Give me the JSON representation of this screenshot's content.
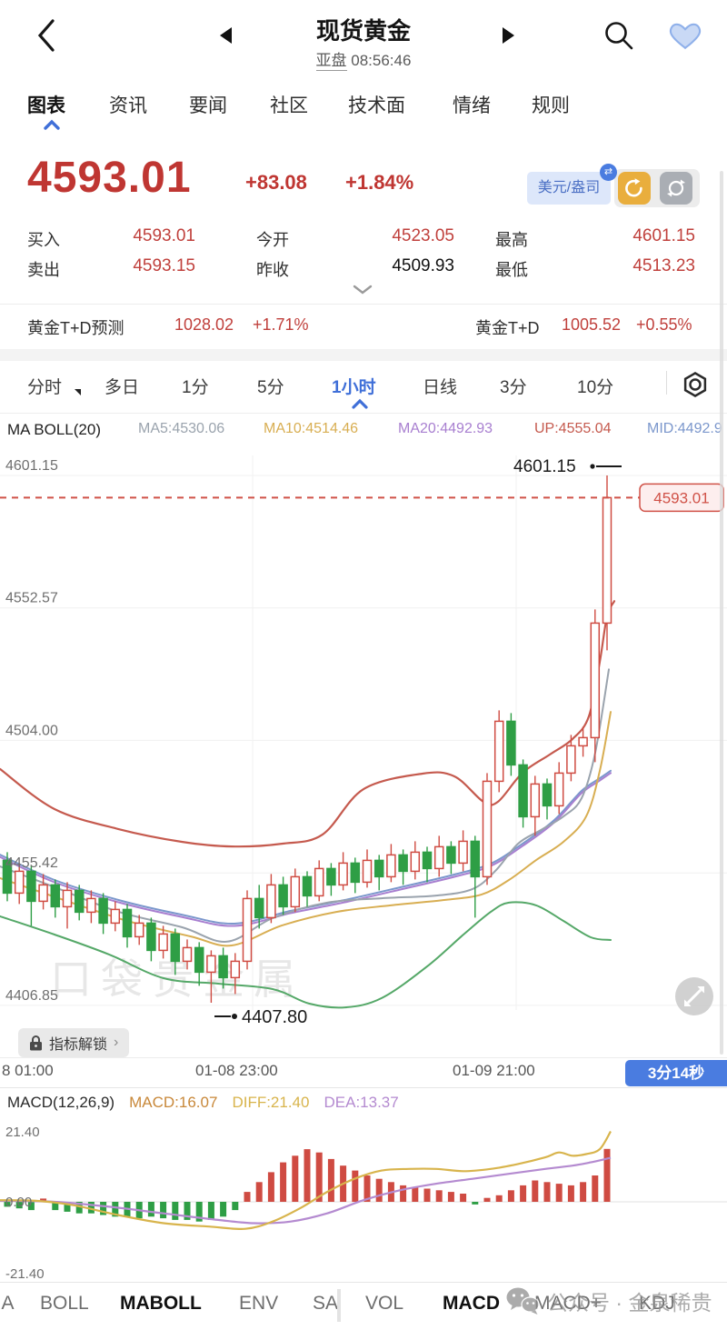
{
  "colors": {
    "up_red": "#cf4b42",
    "down_green": "#2e9e45",
    "price_red": "#bf3632",
    "accent_blue": "#3f6fd8",
    "badge_blue": "#4a7ce0",
    "ma5": "#9aa3ad",
    "ma10": "#d8ae52",
    "ma20": "#a87fd0",
    "boll_up": "#c55a4e",
    "boll_mid": "#7b97cc",
    "boll_low": "#55a868",
    "macd_val": "#c8883a",
    "diff_yellow": "#d8b44c",
    "dea_purple": "#b48ad0"
  },
  "header": {
    "title": "现货黄金",
    "session": "亚盘",
    "time": "08:56:46"
  },
  "nav_tabs": {
    "items": [
      {
        "label": "图表",
        "active": true
      },
      {
        "label": "资讯"
      },
      {
        "label": "要闻"
      },
      {
        "label": "社区"
      },
      {
        "label": "技术面"
      },
      {
        "label": "情绪"
      },
      {
        "label": "规则"
      }
    ]
  },
  "price_panel": {
    "last": "4593.01",
    "change": "+83.08",
    "change_pct": "+1.84%",
    "unit_chip": "美元/盎司"
  },
  "quotes": [
    {
      "label": "买入",
      "value": "4593.01",
      "red": true
    },
    {
      "label": "今开",
      "value": "4523.05",
      "red": true
    },
    {
      "label": "最高",
      "value": "4601.15",
      "red": true
    },
    {
      "label": "卖出",
      "value": "4593.15",
      "red": true
    },
    {
      "label": "昨收",
      "value": "4509.93",
      "red": false
    },
    {
      "label": "最低",
      "value": "4513.23",
      "red": true
    }
  ],
  "td_bar": {
    "left_label": "黄金T+D预测",
    "left_value": "1028.02",
    "left_pct": "+1.71%",
    "right_label": "黄金T+D",
    "right_value": "1005.52",
    "right_pct": "+0.55%"
  },
  "timeframe_bar": {
    "items": [
      {
        "label": "分时",
        "dropdown": true
      },
      {
        "label": "多日"
      },
      {
        "label": "1分"
      },
      {
        "label": "5分"
      },
      {
        "label": "1小时",
        "active": true
      },
      {
        "label": "日线"
      },
      {
        "label": "3分"
      },
      {
        "label": "10分"
      }
    ]
  },
  "indicator_bar": {
    "name": "MA BOLL(20)",
    "values": [
      {
        "text": "MA5:4530.06"
      },
      {
        "text": "MA10:4514.46"
      },
      {
        "text": "MA20:4492.93"
      },
      {
        "text": "UP:4555.04"
      },
      {
        "text": "MID:4492.9"
      }
    ]
  },
  "chart_labels": {
    "high_annotation": "4601.15",
    "low_annotation": "4407.80",
    "price_tag": "4593.01",
    "watermark": "口袋贵金属",
    "unlock_label": "指标解锁",
    "countdown": "3分14秒"
  },
  "x_axis": {
    "labels": [
      {
        "text": "8 01:00",
        "x": 2
      },
      {
        "text": "01-08 23:00",
        "x": 215
      },
      {
        "text": "01-09 21:00",
        "x": 498
      }
    ]
  },
  "macd_bar": {
    "title": "MACD(12,26,9)",
    "macd": "MACD:16.07",
    "diff": "DIFF:21.40",
    "dea": "DEA:13.37",
    "y_top": "21.40",
    "y_zero": "0.00",
    "y_bottom": "-21.40"
  },
  "bottom_tabs": {
    "items": [
      {
        "label": "MA"
      },
      {
        "label": "BOLL"
      },
      {
        "label": "MABOLL",
        "active": true
      },
      {
        "label": "ENV"
      },
      {
        "label": "SA"
      },
      {
        "label": "VOL"
      },
      {
        "label": "MACD",
        "active": true
      },
      {
        "label": "MACD+"
      },
      {
        "label": "KDJ"
      }
    ]
  },
  "footer_watermark": {
    "text": "公众号 · 金泉稀贵"
  },
  "chart_data": {
    "type": "candlestick",
    "title": "现货黄金 1小时",
    "last_price": 4593.01,
    "session_high": 4601.15,
    "session_low_marker": 4407.8,
    "y_axis_labels": [
      4601.15,
      4552.57,
      4504.0,
      4455.42,
      4406.85
    ],
    "x_axis_labels": [
      "8 01:00",
      "01-08 23:00",
      "01-09 21:00"
    ],
    "x_gridlines": [
      278,
      568
    ],
    "candles_ohlc_as_open_close_high_low": [
      [
        4460,
        4448,
        4463,
        4445
      ],
      [
        4448,
        4456,
        4459,
        4444
      ],
      [
        4456,
        4445,
        4458,
        4436
      ],
      [
        4445,
        4451,
        4455,
        4442
      ],
      [
        4451,
        4443,
        4453,
        4439
      ],
      [
        4443,
        4449,
        4452,
        4435
      ],
      [
        4449,
        4441,
        4451,
        4438
      ],
      [
        4441,
        4446,
        4449,
        4437
      ],
      [
        4446,
        4437,
        4448,
        4433
      ],
      [
        4437,
        4442,
        4445,
        4434
      ],
      [
        4442,
        4432,
        4444,
        4428
      ],
      [
        4432,
        4437,
        4440,
        4429
      ],
      [
        4437,
        4427,
        4439,
        4423
      ],
      [
        4427,
        4433,
        4436,
        4424
      ],
      [
        4433,
        4423,
        4435,
        4418
      ],
      [
        4423,
        4428,
        4431,
        4420
      ],
      [
        4428,
        4419,
        4430,
        4414
      ],
      [
        4419,
        4425,
        4427,
        4407.8
      ],
      [
        4425,
        4417,
        4428,
        4413
      ],
      [
        4417,
        4423,
        4426,
        4411
      ],
      [
        4423,
        4446,
        4449,
        4420
      ],
      [
        4446,
        4439,
        4451,
        4435
      ],
      [
        4439,
        4451,
        4455,
        4437
      ],
      [
        4451,
        4443,
        4454,
        4440
      ],
      [
        4443,
        4454,
        4457,
        4441
      ],
      [
        4454,
        4447,
        4456,
        4443
      ],
      [
        4447,
        4457,
        4460,
        4445
      ],
      [
        4457,
        4451,
        4459,
        4447
      ],
      [
        4451,
        4459,
        4463,
        4449
      ],
      [
        4459,
        4452,
        4461,
        4448
      ],
      [
        4452,
        4460,
        4464,
        4450
      ],
      [
        4460,
        4454,
        4462,
        4449
      ],
      [
        4454,
        4462,
        4466,
        4452
      ],
      [
        4462,
        4456,
        4464,
        4451
      ],
      [
        4456,
        4463,
        4467,
        4453
      ],
      [
        4463,
        4457,
        4465,
        4452
      ],
      [
        4457,
        4465,
        4469,
        4454
      ],
      [
        4465,
        4459,
        4467,
        4455
      ],
      [
        4459,
        4467,
        4471,
        4456
      ],
      [
        4467,
        4454,
        4469,
        4439
      ],
      [
        4454,
        4489,
        4492,
        4451
      ],
      [
        4489,
        4511,
        4515,
        4485
      ],
      [
        4511,
        4495,
        4514,
        4491
      ],
      [
        4495,
        4476,
        4497,
        4472
      ],
      [
        4476,
        4488,
        4491,
        4469
      ],
      [
        4488,
        4480,
        4490,
        4475
      ],
      [
        4480,
        4492,
        4496,
        4477
      ],
      [
        4492,
        4502,
        4506,
        4489
      ],
      [
        4502,
        4505,
        4509,
        4498
      ],
      [
        4505,
        4547,
        4552,
        4496
      ],
      [
        4547,
        4593.01,
        4601.15,
        4537
      ]
    ],
    "overlays": {
      "boll_upper": [
        [
          0,
          4493.5
        ],
        [
          60,
          4478.8
        ],
        [
          130,
          4471.5
        ],
        [
          200,
          4466.8
        ],
        [
          255,
          4465.1
        ],
        [
          310,
          4466.1
        ],
        [
          355,
          4469.5
        ],
        [
          400,
          4486.1
        ],
        [
          465,
          4491.8
        ],
        [
          500,
          4490.8
        ],
        [
          532,
          4481.5
        ],
        [
          548,
          4481.5
        ],
        [
          575,
          4492.1
        ],
        [
          605,
          4498.8
        ],
        [
          630,
          4504.5
        ],
        [
          648,
          4512.8
        ],
        [
          660,
          4532.8
        ],
        [
          668,
          4549.5
        ],
        [
          676,
          4555.04
        ]
      ],
      "boll_mid": [
        [
          0,
          4462.1
        ],
        [
          60,
          4452.8
        ],
        [
          130,
          4445.5
        ],
        [
          200,
          4440.1
        ],
        [
          258,
          4436.8
        ],
        [
          320,
          4441.5
        ],
        [
          380,
          4445.5
        ],
        [
          440,
          4450.1
        ],
        [
          500,
          4454.8
        ],
        [
          540,
          4458.8
        ],
        [
          575,
          4466.1
        ],
        [
          610,
          4474.8
        ],
        [
          640,
          4485.5
        ],
        [
          660,
          4490.1
        ],
        [
          672,
          4492.9
        ]
      ],
      "boll_lower": [
        [
          0,
          4439.5
        ],
        [
          60,
          4432.8
        ],
        [
          120,
          4425.5
        ],
        [
          180,
          4416.8
        ],
        [
          240,
          4414.8
        ],
        [
          300,
          4412.8
        ],
        [
          340,
          4407.5
        ],
        [
          380,
          4406.1
        ],
        [
          420,
          4409.5
        ],
        [
          470,
          4421.1
        ],
        [
          510,
          4432.8
        ],
        [
          540,
          4441.1
        ],
        [
          560,
          4444.5
        ],
        [
          590,
          4443.5
        ],
        [
          620,
          4437.8
        ],
        [
          650,
          4431.8
        ],
        [
          672,
          4430.8
        ]
      ],
      "ma5": [
        [
          0,
          4457.8
        ],
        [
          60,
          4450.2
        ],
        [
          130,
          4441.2
        ],
        [
          200,
          4435.5
        ],
        [
          250,
          4430.2
        ],
        [
          300,
          4438.8
        ],
        [
          360,
          4444.5
        ],
        [
          420,
          4446.1
        ],
        [
          480,
          4447.1
        ],
        [
          520,
          4449.5
        ],
        [
          545,
          4456.1
        ],
        [
          570,
          4466.1
        ],
        [
          595,
          4471.1
        ],
        [
          620,
          4476.1
        ],
        [
          640,
          4482.8
        ],
        [
          655,
          4499.5
        ],
        [
          670,
          4530.06
        ]
      ],
      "ma10": [
        [
          0,
          4453.5
        ],
        [
          70,
          4445.5
        ],
        [
          140,
          4437.8
        ],
        [
          210,
          4432.1
        ],
        [
          255,
          4428.8
        ],
        [
          310,
          4436.1
        ],
        [
          370,
          4441.1
        ],
        [
          430,
          4443.5
        ],
        [
          490,
          4445.5
        ],
        [
          530,
          4447.5
        ],
        [
          560,
          4452.8
        ],
        [
          590,
          4460.1
        ],
        [
          620,
          4466.8
        ],
        [
          645,
          4476.1
        ],
        [
          660,
          4492.8
        ],
        [
          672,
          4514.46
        ]
      ]
    },
    "macd": {
      "params": "12,26,9",
      "macd_value": 16.07,
      "diff_value": 21.4,
      "dea_value": 13.37,
      "y_range": [
        -21.4,
        21.4
      ],
      "histogram": [
        -1.5,
        -2,
        -2.5,
        1,
        -2.5,
        -3,
        -3.5,
        -3.5,
        -4,
        -4.5,
        -4.5,
        -5,
        -4.5,
        -5,
        -5.5,
        -5.5,
        -6,
        -5.5,
        -4.5,
        -2.5,
        3,
        6,
        9,
        12,
        14,
        16,
        15,
        13,
        11,
        9.5,
        8,
        7,
        6,
        5,
        4.5,
        4,
        3.5,
        3,
        2.5,
        -0.8,
        1.2,
        2,
        3.5,
        5,
        6.5,
        6,
        5.5,
        5,
        6,
        8,
        16.07
      ],
      "diff_line": [
        [
          0,
          0.5
        ],
        [
          40,
          0.3
        ],
        [
          80,
          -1
        ],
        [
          130,
          -4
        ],
        [
          180,
          -6.5
        ],
        [
          230,
          -7.5
        ],
        [
          270,
          -8.2
        ],
        [
          300,
          -6
        ],
        [
          330,
          -2
        ],
        [
          360,
          3
        ],
        [
          390,
          7
        ],
        [
          420,
          9.5
        ],
        [
          450,
          10
        ],
        [
          480,
          10
        ],
        [
          510,
          9.3
        ],
        [
          540,
          10
        ],
        [
          570,
          11.5
        ],
        [
          600,
          13.5
        ],
        [
          615,
          15
        ],
        [
          630,
          14
        ],
        [
          645,
          14.5
        ],
        [
          660,
          16
        ],
        [
          672,
          21.4
        ]
      ],
      "dea_line": [
        [
          0,
          0.3
        ],
        [
          60,
          0
        ],
        [
          120,
          -1.5
        ],
        [
          180,
          -3.5
        ],
        [
          240,
          -5.5
        ],
        [
          280,
          -6.5
        ],
        [
          320,
          -6
        ],
        [
          360,
          -3.5
        ],
        [
          400,
          0.5
        ],
        [
          440,
          3.5
        ],
        [
          480,
          5.5
        ],
        [
          520,
          7
        ],
        [
          560,
          8.5
        ],
        [
          600,
          10
        ],
        [
          630,
          11
        ],
        [
          650,
          12
        ],
        [
          672,
          13.37
        ]
      ]
    }
  }
}
